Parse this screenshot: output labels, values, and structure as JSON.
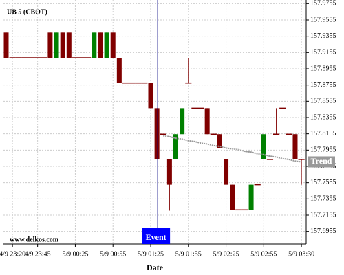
{
  "chart_data": {
    "type": "candlestick",
    "title": "UB 5 (CBOT)",
    "watermark": "www.delkos.com",
    "x_label": "Date",
    "categories": [
      null,
      "4/9 23:20",
      null,
      null,
      null,
      "4/9 23:45",
      null,
      null,
      null,
      null,
      null,
      "5/9 00:25",
      null,
      null,
      null,
      null,
      null,
      "5/9 00:55",
      null,
      null,
      null,
      null,
      null,
      "5/9 01:25",
      null,
      null,
      null,
      null,
      null,
      "5/9 01:55",
      null,
      null,
      null,
      null,
      null,
      "5/9 02:25",
      null,
      null,
      null,
      null,
      null,
      "5/9 02:55",
      null,
      null,
      null,
      null,
      null,
      "5/9 03:30"
    ],
    "open": [
      157.94,
      157.909,
      157.909,
      157.909,
      157.909,
      157.909,
      157.909,
      157.94,
      157.909,
      157.94,
      157.94,
      157.909,
      157.909,
      157.909,
      157.909,
      157.94,
      157.909,
      157.94,
      157.909,
      157.878,
      157.878,
      157.878,
      157.878,
      157.878,
      157.847,
      157.815,
      157.784,
      157.784,
      157.815,
      157.878,
      157.847,
      157.847,
      157.847,
      157.815,
      157.815,
      157.784,
      157.753,
      157.722,
      157.722,
      157.722,
      157.753,
      157.784,
      157.784,
      157.815,
      157.847,
      157.815,
      157.815,
      157.784
    ],
    "high": [
      157.94,
      157.909,
      157.909,
      157.909,
      157.909,
      157.909,
      157.909,
      157.94,
      157.94,
      157.94,
      157.94,
      157.909,
      157.909,
      157.909,
      157.94,
      157.94,
      157.94,
      157.94,
      157.909,
      157.878,
      157.878,
      157.878,
      157.878,
      157.878,
      157.847,
      157.815,
      157.784,
      157.815,
      157.847,
      157.909,
      157.847,
      157.847,
      157.847,
      157.815,
      157.815,
      157.784,
      157.753,
      157.722,
      157.722,
      157.753,
      157.753,
      157.815,
      157.784,
      157.847,
      157.847,
      157.815,
      157.815,
      157.784
    ],
    "low": [
      157.909,
      157.909,
      157.909,
      157.909,
      157.909,
      157.909,
      157.909,
      157.909,
      157.909,
      157.909,
      157.909,
      157.909,
      157.909,
      157.909,
      157.909,
      157.909,
      157.909,
      157.909,
      157.878,
      157.878,
      157.878,
      157.878,
      157.878,
      157.847,
      157.784,
      157.815,
      157.721,
      157.784,
      157.815,
      157.878,
      157.847,
      157.847,
      157.815,
      157.815,
      157.798,
      157.753,
      157.722,
      157.722,
      157.722,
      157.722,
      157.753,
      157.784,
      157.784,
      157.815,
      157.847,
      157.815,
      157.784,
      157.753
    ],
    "close": [
      157.909,
      157.909,
      157.909,
      157.909,
      157.909,
      157.909,
      157.909,
      157.909,
      157.94,
      157.909,
      157.909,
      157.909,
      157.909,
      157.909,
      157.94,
      157.909,
      157.94,
      157.909,
      157.878,
      157.878,
      157.878,
      157.878,
      157.878,
      157.847,
      157.784,
      157.815,
      157.753,
      157.815,
      157.847,
      157.878,
      157.847,
      157.847,
      157.815,
      157.815,
      157.798,
      157.753,
      157.722,
      157.722,
      157.722,
      157.753,
      157.753,
      157.815,
      157.784,
      157.815,
      157.847,
      157.815,
      157.784,
      157.784
    ],
    "up_color": "#008000",
    "down_color": "#800000",
    "trend": {
      "name": "Trend",
      "color": "#999999",
      "values": [
        null,
        null,
        null,
        null,
        null,
        null,
        null,
        null,
        null,
        null,
        null,
        null,
        null,
        null,
        null,
        null,
        null,
        null,
        null,
        null,
        null,
        null,
        null,
        null,
        null,
        157.813,
        157.812,
        157.81,
        157.809,
        157.807,
        157.806,
        157.804,
        157.803,
        157.801,
        157.8,
        157.798,
        157.797,
        157.796,
        157.794,
        157.793,
        157.791,
        157.79,
        157.788,
        157.787,
        157.785,
        157.784,
        157.782,
        157.781
      ]
    },
    "event": {
      "label": "Event",
      "category_index": 24
    },
    "ylim": [
      157.68,
      157.98
    ],
    "yticks": [
      157.9755,
      157.9555,
      157.9355,
      157.9155,
      157.8955,
      157.8755,
      157.8555,
      157.8355,
      157.8155,
      157.7955,
      157.7755,
      157.7555,
      157.7355,
      157.7155,
      157.6955
    ],
    "grid": true
  }
}
